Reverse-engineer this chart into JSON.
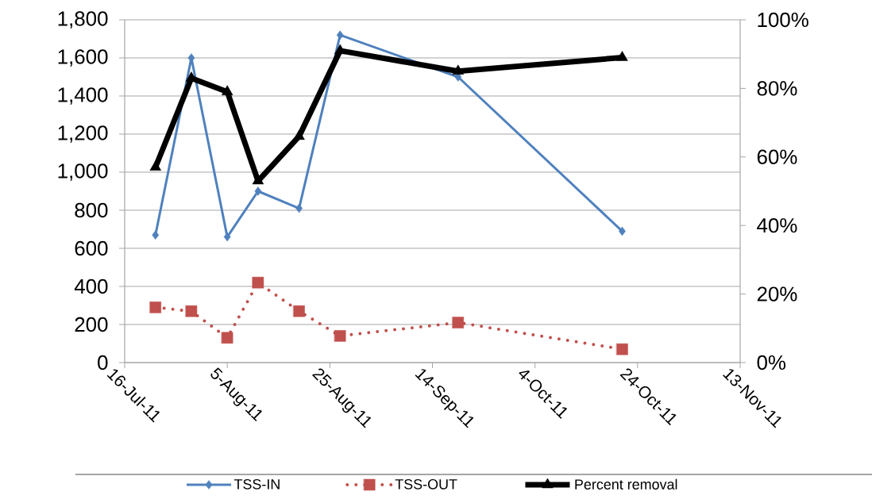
{
  "chart_data": {
    "type": "line",
    "x": [
      "2011-07-22",
      "2011-07-29",
      "2011-08-05",
      "2011-08-11",
      "2011-08-19",
      "2011-08-27",
      "2011-09-19",
      "2011-10-21"
    ],
    "xlim": [
      "2011-07-16",
      "2011-11-13"
    ],
    "xticks": [
      {
        "value": "2011-07-16",
        "label": "16-Jul-11"
      },
      {
        "value": "2011-08-05",
        "label": "5-Aug-11"
      },
      {
        "value": "2011-08-25",
        "label": "25-Aug-11"
      },
      {
        "value": "2011-09-14",
        "label": "14-Sep-11"
      },
      {
        "value": "2011-10-04",
        "label": "4-Oct-11"
      },
      {
        "value": "2011-10-24",
        "label": "24-Oct-11"
      },
      {
        "value": "2011-11-13",
        "label": "13-Nov-11"
      }
    ],
    "ylim": [
      0,
      1800
    ],
    "yticks": [
      0,
      200,
      400,
      600,
      800,
      {
        "value": 1000,
        "label": "1,000"
      },
      {
        "value": 1200,
        "label": "1,200"
      },
      {
        "value": 1400,
        "label": "1,400"
      },
      {
        "value": 1600,
        "label": "1,600"
      },
      {
        "value": 1800,
        "label": "1,800"
      }
    ],
    "y2lim": [
      0,
      100
    ],
    "y2ticks": [
      {
        "value": 0,
        "label": "0%"
      },
      {
        "value": 20,
        "label": "20%"
      },
      {
        "value": 40,
        "label": "40%"
      },
      {
        "value": 60,
        "label": "60%"
      },
      {
        "value": 80,
        "label": "80%"
      },
      {
        "value": 100,
        "label": "100%"
      }
    ],
    "grid": "y",
    "legend": "bottom",
    "series": [
      {
        "name": "TSS-IN",
        "color": "#4f81bd",
        "marker": "diamond",
        "line_style": "solid",
        "values": [
          670,
          1600,
          660,
          900,
          810,
          1720,
          1500,
          690
        ]
      },
      {
        "name": "TSS-OUT",
        "color": "#c0504d",
        "marker": "square",
        "line_style": "dotted",
        "values": [
          290,
          270,
          130,
          420,
          270,
          140,
          210,
          70
        ]
      },
      {
        "name": "Percent removal",
        "color": "#000000",
        "marker": "triangle",
        "line_style": "solid",
        "axis": "y2",
        "values": [
          57,
          83,
          79,
          53,
          66,
          91,
          85,
          89
        ]
      }
    ]
  }
}
